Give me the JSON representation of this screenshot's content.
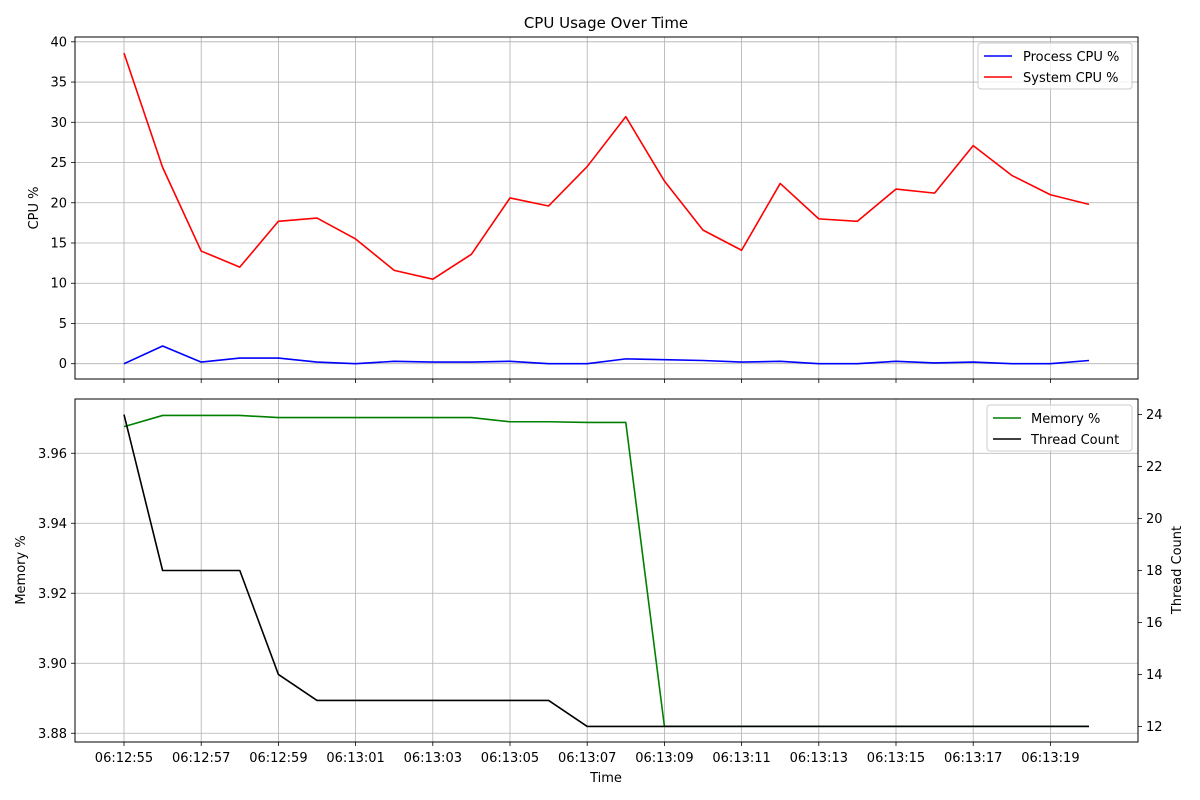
{
  "chart_data": [
    {
      "type": "line",
      "title": "CPU Usage Over Time",
      "xlabel": "",
      "ylabel": "CPU %",
      "ylim": [
        -1.9,
        40.6
      ],
      "yticks": [
        0,
        5,
        10,
        15,
        20,
        25,
        30,
        35,
        40
      ],
      "grid": true,
      "legend": "top-right",
      "x": [
        "06:12:55",
        "06:12:56",
        "06:12:57",
        "06:12:58",
        "06:12:59",
        "06:13:00",
        "06:13:01",
        "06:13:02",
        "06:13:03",
        "06:13:04",
        "06:13:05",
        "06:13:06",
        "06:13:07",
        "06:13:08",
        "06:13:09",
        "06:13:10",
        "06:13:11",
        "06:13:12",
        "06:13:13",
        "06:13:14",
        "06:13:15",
        "06:13:16",
        "06:13:17",
        "06:13:18",
        "06:13:19",
        "06:13:20"
      ],
      "series": [
        {
          "name": "Process CPU %",
          "color": "#0000ff",
          "values": [
            0.0,
            2.2,
            0.2,
            0.7,
            0.7,
            0.2,
            0.0,
            0.3,
            0.2,
            0.2,
            0.3,
            0.0,
            0.0,
            0.6,
            0.5,
            0.4,
            0.2,
            0.3,
            0.0,
            0.0,
            0.3,
            0.1,
            0.2,
            0.0,
            0.0,
            0.4
          ]
        },
        {
          "name": "System CPU %",
          "color": "#ff0000",
          "values": [
            38.6,
            24.4,
            14.0,
            12.0,
            17.7,
            18.1,
            15.5,
            11.6,
            10.5,
            13.6,
            20.6,
            19.6,
            24.5,
            30.7,
            22.7,
            16.6,
            14.1,
            22.4,
            18.0,
            17.7,
            21.7,
            21.2,
            27.1,
            23.4,
            21.0,
            19.8
          ]
        }
      ]
    },
    {
      "type": "line",
      "xlabel": "Time",
      "ylabel": "Memory %",
      "y2label": "Thread Count",
      "ylim": [
        3.8775,
        3.9755
      ],
      "y2lim": [
        11.4,
        24.6
      ],
      "yticks": [
        "3.88",
        "3.90",
        "3.92",
        "3.94",
        "3.96"
      ],
      "y2ticks": [
        12,
        14,
        16,
        18,
        20,
        22,
        24
      ],
      "xticks": [
        "06:12:55",
        "06:12:57",
        "06:12:59",
        "06:13:01",
        "06:13:03",
        "06:13:05",
        "06:13:07",
        "06:13:09",
        "06:13:11",
        "06:13:13",
        "06:13:15",
        "06:13:17",
        "06:13:19"
      ],
      "grid": true,
      "legend": "top-right",
      "x": [
        "06:12:55",
        "06:12:56",
        "06:12:57",
        "06:12:58",
        "06:12:59",
        "06:13:00",
        "06:13:01",
        "06:13:02",
        "06:13:03",
        "06:13:04",
        "06:13:05",
        "06:13:06",
        "06:13:07",
        "06:13:08",
        "06:13:09",
        "06:13:10",
        "06:13:11",
        "06:13:12",
        "06:13:13",
        "06:13:14",
        "06:13:15",
        "06:13:16",
        "06:13:17",
        "06:13:18",
        "06:13:19",
        "06:13:20"
      ],
      "series": [
        {
          "name": "Memory %",
          "color": "#008000",
          "axis": "left",
          "values": [
            3.9676,
            3.9708,
            3.9708,
            3.9708,
            3.9702,
            3.9702,
            3.9702,
            3.9702,
            3.9702,
            3.9702,
            3.969,
            3.969,
            3.9688,
            3.9688,
            3.882,
            3.882,
            3.882,
            3.882,
            3.882,
            3.882,
            3.882,
            3.882,
            3.882,
            3.882,
            3.882,
            3.882
          ]
        },
        {
          "name": "Thread Count",
          "color": "#000000",
          "axis": "right",
          "values": [
            24,
            18,
            18,
            18,
            14,
            13,
            13,
            13,
            13,
            13,
            13,
            13,
            12,
            12,
            12,
            12,
            12,
            12,
            12,
            12,
            12,
            12,
            12,
            12,
            12,
            12
          ]
        }
      ]
    }
  ]
}
